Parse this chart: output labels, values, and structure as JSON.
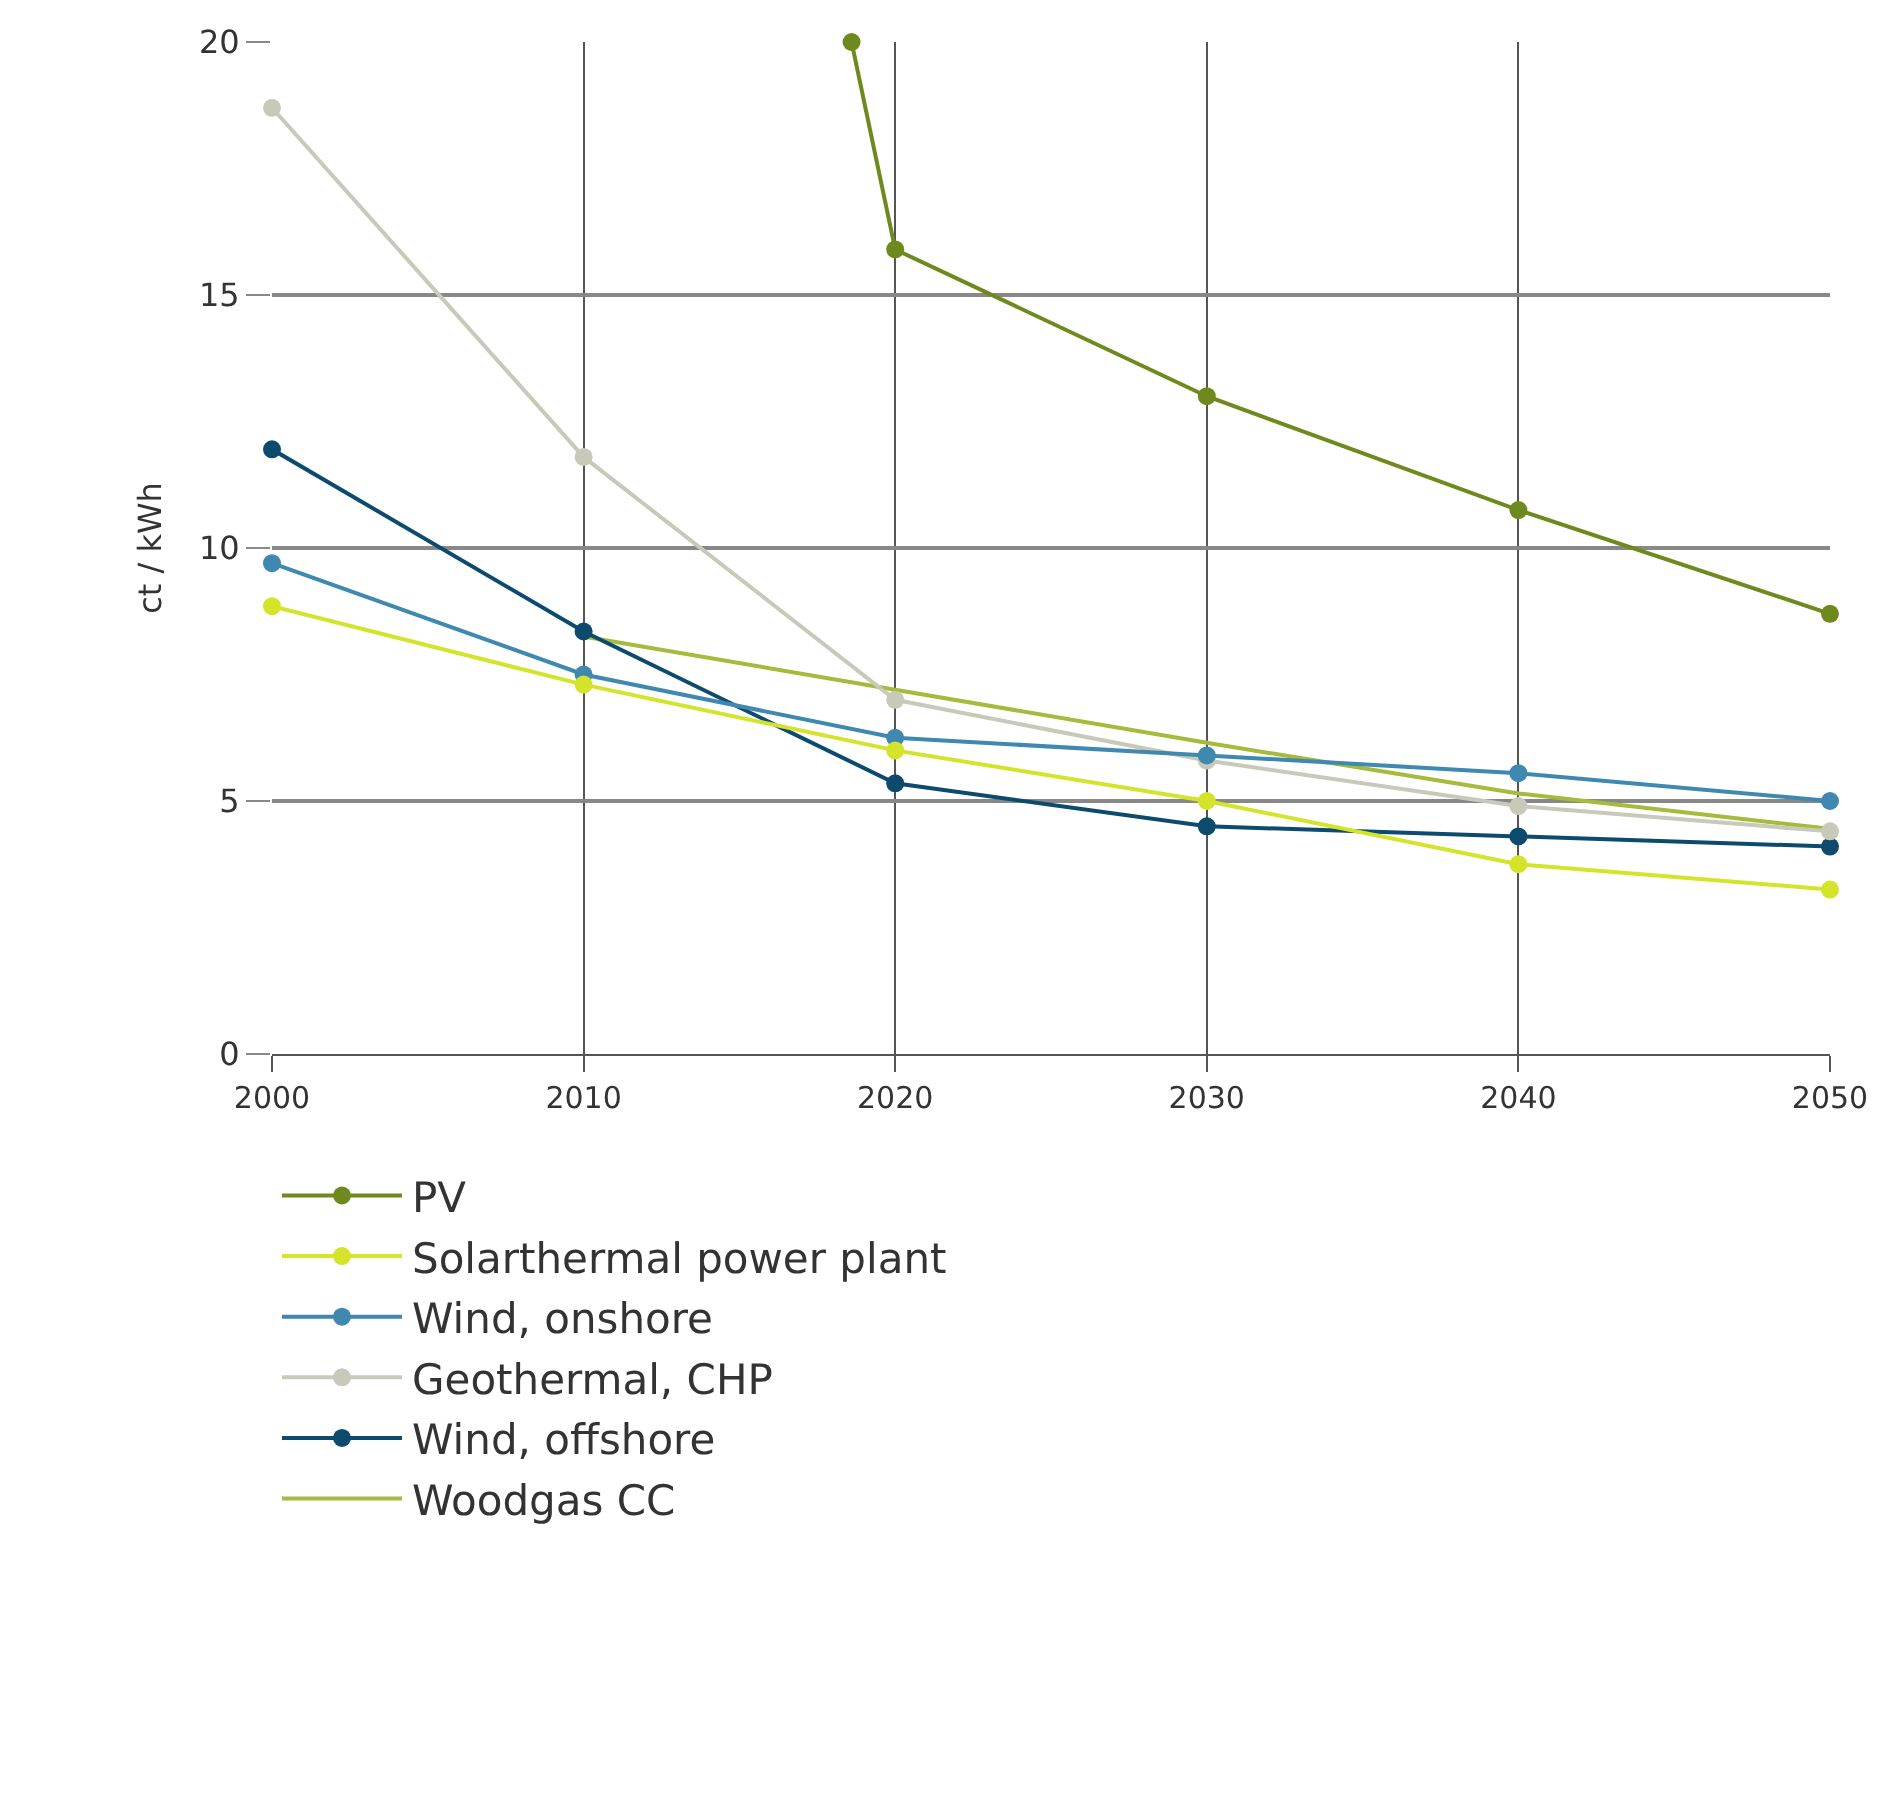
{
  "chart_data": {
    "type": "line",
    "ylabel": "ct / kWh",
    "xlim": [
      2000,
      2050
    ],
    "xticks": [
      2000,
      2010,
      2020,
      2030,
      2040,
      2050
    ],
    "ylim": [
      0,
      20
    ],
    "yticks": [
      0,
      5,
      10,
      15,
      20
    ],
    "grid": true,
    "legend": "bottom",
    "marker": "circle",
    "series": [
      {
        "name": "PV",
        "color": "#6e8a1f",
        "x": [
          2018.6,
          2020,
          2030,
          2040,
          2050
        ],
        "values": [
          20,
          15.9,
          13.0,
          10.75,
          8.7
        ]
      },
      {
        "name": "Solarthermal power plant",
        "color": "#d4e42a",
        "x": [
          2000,
          2010,
          2020,
          2030,
          2040,
          2050
        ],
        "values": [
          8.85,
          7.3,
          6.0,
          5.0,
          3.75,
          3.25
        ]
      },
      {
        "name": "Wind, onshore",
        "color": "#3f88b0",
        "x": [
          2000,
          2010,
          2020,
          2030,
          2040,
          2050
        ],
        "values": [
          9.7,
          7.5,
          6.25,
          5.9,
          5.55,
          5.0
        ]
      },
      {
        "name": "Geothermal, CHP",
        "color": "#c8c9b8",
        "x": [
          2000,
          2010,
          2020,
          2030,
          2040,
          2050
        ],
        "values": [
          18.7,
          11.8,
          7.0,
          5.8,
          4.9,
          4.4
        ]
      },
      {
        "name": "Wind, offshore",
        "color": "#0c4a6e",
        "x": [
          2000,
          2010,
          2020,
          2030,
          2040,
          2050
        ],
        "values": [
          11.95,
          8.35,
          5.35,
          4.5,
          4.3,
          4.1
        ]
      },
      {
        "name": "Woodgas CC",
        "color": "#a4bb3c",
        "marker": "none",
        "x": [
          2010,
          2020,
          2030,
          2040,
          2050
        ],
        "values": [
          8.25,
          7.2,
          6.15,
          5.15,
          4.45
        ]
      }
    ]
  }
}
